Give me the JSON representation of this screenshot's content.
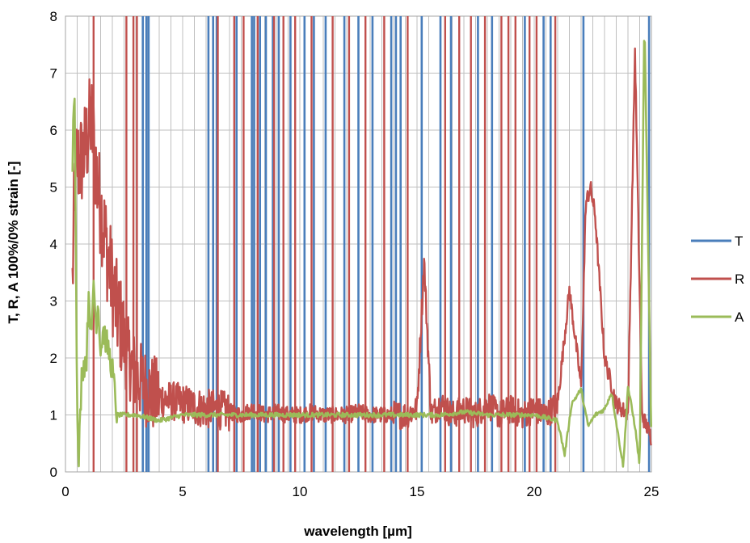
{
  "chart_data": {
    "type": "line",
    "title": "",
    "xlabel": "wavelength [µm]",
    "ylabel": "T, R, A 100%/0% strain [-]",
    "xlim": [
      0,
      25
    ],
    "ylim": [
      0,
      8
    ],
    "xticks": [
      0,
      5,
      10,
      15,
      20,
      25
    ],
    "yticks": [
      0,
      1,
      2,
      3,
      4,
      5,
      6,
      7,
      8
    ],
    "grid": "vertical minor every 0.5, horizontal at major ticks",
    "legend_position": "right",
    "colors": {
      "T": "#4a7ebb",
      "R": "#c0504d",
      "A": "#9bbb59",
      "grid": "#bfbfbf"
    },
    "series": [
      {
        "name": "T",
        "spikes_at": [
          3.3,
          3.45,
          3.55,
          6.1,
          6.3,
          6.45,
          7.3,
          7.95,
          8.05,
          8.3,
          8.55,
          8.85,
          9.1,
          9.6,
          10.2,
          10.6,
          11.1,
          11.9,
          12.5,
          13.1,
          13.9,
          14.1,
          14.3,
          15.2,
          16.0,
          16.45,
          17.6,
          18.2,
          19.6,
          20.4,
          20.7,
          22.1,
          24.9
        ],
        "baseline": [
          [
            0.4,
            1.0
          ],
          [
            3.2,
            1.0
          ],
          [
            25,
            1.0
          ]
        ]
      },
      {
        "name": "R",
        "x": [
          0.3,
          0.4,
          0.5,
          0.6,
          0.8,
          1.0,
          1.1,
          1.2,
          1.4,
          1.6,
          1.8,
          2.0,
          2.2,
          2.4,
          2.6,
          2.8,
          3.0,
          3.2,
          3.4,
          3.6,
          3.8,
          4.0,
          4.5,
          5.0,
          5.5,
          6.0,
          6.5,
          7.0,
          7.5,
          8.0,
          8.5,
          9.0,
          9.5,
          10.0,
          10.5,
          11.0,
          11.5,
          12.0,
          12.5,
          13.0,
          13.5,
          14.0,
          14.5,
          15.0,
          15.3,
          15.6,
          16.0,
          16.5,
          17.0,
          17.5,
          18.0,
          18.5,
          19.0,
          19.5,
          20.0,
          20.5,
          21.0,
          21.5,
          22.0,
          22.2,
          22.4,
          22.6,
          23.0,
          23.5,
          24.0,
          24.3,
          24.6,
          25.0
        ],
        "y": [
          3.3,
          5.1,
          5.5,
          5.4,
          5.6,
          6.0,
          6.2,
          5.8,
          4.9,
          4.4,
          3.8,
          3.3,
          2.8,
          2.5,
          2.1,
          1.9,
          1.7,
          1.6,
          1.5,
          1.4,
          1.35,
          1.3,
          1.25,
          1.2,
          1.15,
          1.1,
          1.1,
          1.05,
          1.0,
          1.1,
          1.0,
          1.05,
          1.0,
          1.0,
          1.05,
          1.0,
          1.0,
          1.0,
          1.05,
          1.0,
          1.0,
          1.0,
          1.0,
          1.1,
          3.7,
          1.0,
          1.2,
          1.0,
          1.1,
          1.0,
          1.2,
          1.0,
          1.1,
          1.0,
          1.1,
          1.0,
          1.2,
          3.2,
          1.5,
          4.7,
          5.0,
          4.5,
          2.0,
          1.2,
          1.0,
          7.4,
          1.0,
          0.6
        ]
      },
      {
        "name": "A",
        "x": [
          0.3,
          0.38,
          0.45,
          0.5,
          0.55,
          0.7,
          0.9,
          1.0,
          1.1,
          1.2,
          1.3,
          1.4,
          1.5,
          1.6,
          1.8,
          2.0,
          2.2,
          2.4,
          2.6,
          3.0,
          3.5,
          4.0,
          5.0,
          6.0,
          7.0,
          8.0,
          9.0,
          10.0,
          11.0,
          12.0,
          13.0,
          14.0,
          15.0,
          16.0,
          17.0,
          18.0,
          19.0,
          20.0,
          20.5,
          21.0,
          21.3,
          21.6,
          22.0,
          22.3,
          22.6,
          23.0,
          23.3,
          23.6,
          23.8,
          24.0,
          24.3,
          24.5,
          24.7,
          25.0
        ],
        "y": [
          5.5,
          6.95,
          4.0,
          1.0,
          0.0,
          1.8,
          2.0,
          3.3,
          2.2,
          3.4,
          2.6,
          3.0,
          2.1,
          2.5,
          2.2,
          1.8,
          1.0,
          1.0,
          1.0,
          1.0,
          0.95,
          0.9,
          1.0,
          1.0,
          1.0,
          1.0,
          1.0,
          1.0,
          1.0,
          1.0,
          1.0,
          1.0,
          1.0,
          1.0,
          1.05,
          1.0,
          1.0,
          1.0,
          0.95,
          0.9,
          0.3,
          1.2,
          1.45,
          0.8,
          1.0,
          1.1,
          1.4,
          0.6,
          0.1,
          1.5,
          0.8,
          0.1,
          8.0,
          0.5
        ]
      }
    ]
  }
}
